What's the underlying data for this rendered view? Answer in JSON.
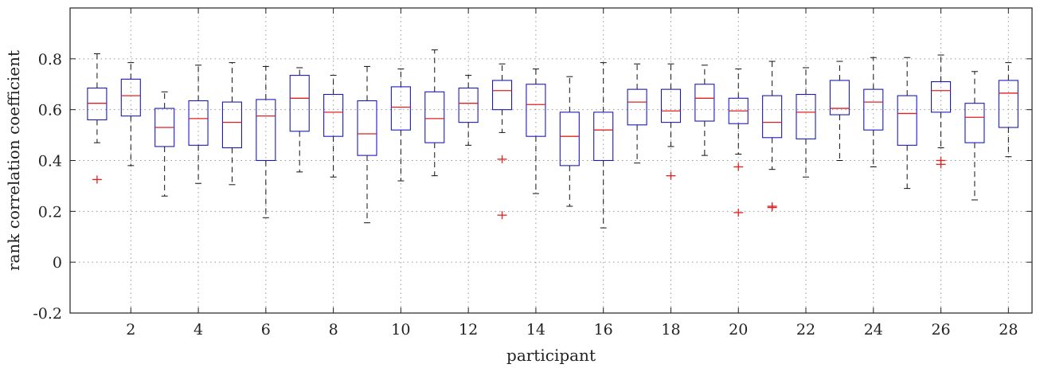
{
  "chart_data": {
    "type": "boxplot",
    "xlabel": "participant",
    "ylabel": "rank correlation coefficient",
    "ylim": [
      -0.2,
      1.0
    ],
    "xlim": [
      0.2,
      28.7
    ],
    "grid": true,
    "x_ticks": [
      2,
      4,
      6,
      8,
      10,
      12,
      14,
      16,
      18,
      20,
      22,
      24,
      26,
      28
    ],
    "y_ticks": [
      -0.2,
      0,
      0.2,
      0.4,
      0.6,
      0.8
    ],
    "y_tick_labels": [
      "-0.2",
      "0",
      "0.2",
      "0.4",
      "0.6",
      "0.8"
    ],
    "x_tick_labels": [
      "2",
      "4",
      "6",
      "8",
      "10",
      "12",
      "14",
      "16",
      "18",
      "20",
      "22",
      "24",
      "26",
      "28"
    ],
    "colors": {
      "box": "#1a1ab8",
      "median": "#e02020",
      "whisker": "#111111",
      "outlier": "#e02020",
      "grid": "#999999"
    },
    "boxes": [
      {
        "participant": 1,
        "q1": 0.56,
        "median": 0.625,
        "q3": 0.685,
        "whisker_low": 0.47,
        "whisker_high": 0.82,
        "outliers": [
          0.325
        ]
      },
      {
        "participant": 2,
        "q1": 0.575,
        "median": 0.655,
        "q3": 0.72,
        "whisker_low": 0.38,
        "whisker_high": 0.785,
        "outliers": []
      },
      {
        "participant": 3,
        "q1": 0.455,
        "median": 0.53,
        "q3": 0.605,
        "whisker_low": 0.26,
        "whisker_high": 0.67,
        "outliers": []
      },
      {
        "participant": 4,
        "q1": 0.46,
        "median": 0.565,
        "q3": 0.635,
        "whisker_low": 0.31,
        "whisker_high": 0.775,
        "outliers": []
      },
      {
        "participant": 5,
        "q1": 0.45,
        "median": 0.55,
        "q3": 0.63,
        "whisker_low": 0.305,
        "whisker_high": 0.785,
        "outliers": []
      },
      {
        "participant": 6,
        "q1": 0.4,
        "median": 0.575,
        "q3": 0.64,
        "whisker_low": 0.175,
        "whisker_high": 0.77,
        "outliers": []
      },
      {
        "participant": 7,
        "q1": 0.515,
        "median": 0.645,
        "q3": 0.735,
        "whisker_low": 0.355,
        "whisker_high": 0.765,
        "outliers": []
      },
      {
        "participant": 8,
        "q1": 0.495,
        "median": 0.59,
        "q3": 0.66,
        "whisker_low": 0.335,
        "whisker_high": 0.735,
        "outliers": []
      },
      {
        "participant": 9,
        "q1": 0.42,
        "median": 0.505,
        "q3": 0.635,
        "whisker_low": 0.155,
        "whisker_high": 0.77,
        "outliers": []
      },
      {
        "participant": 10,
        "q1": 0.52,
        "median": 0.61,
        "q3": 0.69,
        "whisker_low": 0.32,
        "whisker_high": 0.76,
        "outliers": []
      },
      {
        "participant": 11,
        "q1": 0.47,
        "median": 0.565,
        "q3": 0.67,
        "whisker_low": 0.34,
        "whisker_high": 0.835,
        "outliers": []
      },
      {
        "participant": 12,
        "q1": 0.55,
        "median": 0.625,
        "q3": 0.685,
        "whisker_low": 0.46,
        "whisker_high": 0.735,
        "outliers": []
      },
      {
        "participant": 13,
        "q1": 0.6,
        "median": 0.675,
        "q3": 0.715,
        "whisker_low": 0.51,
        "whisker_high": 0.78,
        "outliers": [
          0.405,
          0.185
        ]
      },
      {
        "participant": 14,
        "q1": 0.495,
        "median": 0.62,
        "q3": 0.7,
        "whisker_low": 0.27,
        "whisker_high": 0.76,
        "outliers": []
      },
      {
        "participant": 15,
        "q1": 0.38,
        "median": 0.495,
        "q3": 0.59,
        "whisker_low": 0.22,
        "whisker_high": 0.73,
        "outliers": []
      },
      {
        "participant": 16,
        "q1": 0.4,
        "median": 0.52,
        "q3": 0.59,
        "whisker_low": 0.135,
        "whisker_high": 0.785,
        "outliers": []
      },
      {
        "participant": 17,
        "q1": 0.54,
        "median": 0.63,
        "q3": 0.68,
        "whisker_low": 0.39,
        "whisker_high": 0.78,
        "outliers": []
      },
      {
        "participant": 18,
        "q1": 0.55,
        "median": 0.595,
        "q3": 0.68,
        "whisker_low": 0.455,
        "whisker_high": 0.78,
        "outliers": [
          0.34
        ]
      },
      {
        "participant": 19,
        "q1": 0.555,
        "median": 0.645,
        "q3": 0.7,
        "whisker_low": 0.42,
        "whisker_high": 0.775,
        "outliers": []
      },
      {
        "participant": 20,
        "q1": 0.545,
        "median": 0.595,
        "q3": 0.645,
        "whisker_low": 0.425,
        "whisker_high": 0.76,
        "outliers": [
          0.375,
          0.195
        ]
      },
      {
        "participant": 21,
        "q1": 0.49,
        "median": 0.55,
        "q3": 0.655,
        "whisker_low": 0.365,
        "whisker_high": 0.79,
        "outliers": [
          0.22,
          0.215
        ]
      },
      {
        "participant": 22,
        "q1": 0.485,
        "median": 0.59,
        "q3": 0.66,
        "whisker_low": 0.335,
        "whisker_high": 0.765,
        "outliers": []
      },
      {
        "participant": 23,
        "q1": 0.58,
        "median": 0.605,
        "q3": 0.715,
        "whisker_low": 0.4,
        "whisker_high": 0.79,
        "outliers": []
      },
      {
        "participant": 24,
        "q1": 0.52,
        "median": 0.63,
        "q3": 0.68,
        "whisker_low": 0.375,
        "whisker_high": 0.805,
        "outliers": []
      },
      {
        "participant": 25,
        "q1": 0.46,
        "median": 0.585,
        "q3": 0.655,
        "whisker_low": 0.29,
        "whisker_high": 0.805,
        "outliers": []
      },
      {
        "participant": 26,
        "q1": 0.59,
        "median": 0.675,
        "q3": 0.71,
        "whisker_low": 0.45,
        "whisker_high": 0.815,
        "outliers": [
          0.4,
          0.385
        ]
      },
      {
        "participant": 27,
        "q1": 0.47,
        "median": 0.57,
        "q3": 0.625,
        "whisker_low": 0.245,
        "whisker_high": 0.75,
        "outliers": []
      },
      {
        "participant": 28,
        "q1": 0.53,
        "median": 0.665,
        "q3": 0.715,
        "whisker_low": 0.415,
        "whisker_high": 0.785,
        "outliers": []
      }
    ]
  }
}
